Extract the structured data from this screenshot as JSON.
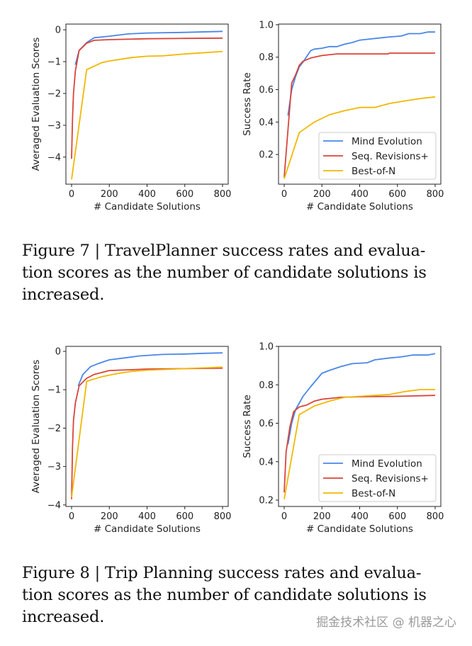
{
  "colors": {
    "mind_evolution": "#4a86e8",
    "seq_revisions": "#d9443a",
    "best_of_n": "#f2b705"
  },
  "figure7": {
    "caption_lines": [
      "Figure 7 | TravelPlanner success rates and evalua-",
      "tion scores as the number of candidate solutions is",
      "increased."
    ]
  },
  "figure8": {
    "caption_lines": [
      "Figure 8 | Trip Planning success rates and evalua-",
      "tion scores as the number of candidate solutions is",
      "increased."
    ]
  },
  "watermark": "掘金技术社区 @ 机器之心",
  "chart_data": [
    {
      "type": "line",
      "figure": "Figure 7",
      "xlabel": "# Candidate Solutions",
      "ylabel": "Averaged Evaluation Scores",
      "xlim": [
        -30,
        830
      ],
      "ylim": [
        -4.85,
        0.18
      ],
      "xticks": [
        0,
        200,
        400,
        600,
        800
      ],
      "xtick_labels": [
        "0",
        "200",
        "400",
        "600",
        "800"
      ],
      "yticks": [
        0,
        -1,
        -2,
        -3,
        -4
      ],
      "ytick_labels": [
        "0",
        "−1",
        "−2",
        "−3",
        "−4"
      ],
      "grid": false,
      "legend": null,
      "series": [
        {
          "key": "mind_evolution",
          "x": [
            20,
            40,
            80,
            120,
            200,
            300,
            400,
            600,
            800
          ],
          "y": [
            -1.1,
            -0.65,
            -0.4,
            -0.25,
            -0.2,
            -0.13,
            -0.1,
            -0.08,
            -0.05
          ]
        },
        {
          "key": "seq_revisions",
          "x": [
            0,
            5,
            10,
            20,
            40,
            80,
            120,
            200,
            400,
            600,
            800
          ],
          "y": [
            -4.05,
            -2.8,
            -2.0,
            -1.3,
            -0.65,
            -0.42,
            -0.33,
            -0.31,
            -0.28,
            -0.27,
            -0.26
          ]
        },
        {
          "key": "best_of_n",
          "x": [
            0,
            80,
            160,
            200,
            320,
            400,
            480,
            600,
            800
          ],
          "y": [
            -4.7,
            -1.25,
            -1.03,
            -0.98,
            -0.87,
            -0.83,
            -0.82,
            -0.76,
            -0.68
          ]
        }
      ]
    },
    {
      "type": "line",
      "figure": "Figure 7",
      "xlabel": "# Candidate Solutions",
      "ylabel": "Success Rate",
      "xlim": [
        -30,
        830
      ],
      "ylim": [
        0.017,
        1.004
      ],
      "xticks": [
        0,
        200,
        400,
        600,
        800
      ],
      "xtick_labels": [
        "0",
        "200",
        "400",
        "600",
        "800"
      ],
      "yticks": [
        1.0,
        0.8,
        0.6,
        0.4,
        0.2
      ],
      "ytick_labels": [
        "1.0",
        "0.8",
        "0.6",
        "0.4",
        "0.2"
      ],
      "grid": false,
      "legend": "lower-right",
      "series": [
        {
          "key": "mind_evolution",
          "name": "Mind Evolution",
          "x": [
            20,
            40,
            60,
            80,
            100,
            140,
            160,
            200,
            240,
            280,
            320,
            360,
            400,
            440,
            520,
            560,
            620,
            660,
            720,
            760,
            800
          ],
          "y": [
            0.44,
            0.6,
            0.68,
            0.74,
            0.77,
            0.84,
            0.85,
            0.855,
            0.865,
            0.865,
            0.88,
            0.89,
            0.905,
            0.91,
            0.92,
            0.925,
            0.93,
            0.945,
            0.945,
            0.955,
            0.955
          ]
        },
        {
          "key": "seq_revisions",
          "name": "Seq. Revisions+",
          "x": [
            0,
            20,
            40,
            60,
            80,
            100,
            140,
            200,
            280,
            550,
            560,
            800
          ],
          "y": [
            0.06,
            0.35,
            0.64,
            0.69,
            0.75,
            0.775,
            0.795,
            0.81,
            0.82,
            0.82,
            0.825,
            0.825
          ]
        },
        {
          "key": "best_of_n",
          "name": "Best-of-N",
          "x": [
            0,
            80,
            160,
            240,
            320,
            400,
            480,
            560,
            640,
            720,
            800
          ],
          "y": [
            0.05,
            0.335,
            0.4,
            0.445,
            0.47,
            0.49,
            0.49,
            0.515,
            0.53,
            0.545,
            0.555
          ]
        }
      ]
    },
    {
      "type": "line",
      "figure": "Figure 8",
      "xlabel": "# Candidate Solutions",
      "ylabel": "Averaged Evaluation Scores",
      "xlim": [
        -30,
        830
      ],
      "ylim": [
        -4.04,
        0.13
      ],
      "xticks": [
        0,
        200,
        400,
        600,
        800
      ],
      "xtick_labels": [
        "0",
        "200",
        "400",
        "600",
        "800"
      ],
      "yticks": [
        0,
        -1,
        -2,
        -3,
        -4
      ],
      "ytick_labels": [
        "0",
        "−1",
        "−2",
        "−3",
        "−4"
      ],
      "grid": false,
      "legend": null,
      "series": [
        {
          "key": "mind_evolution",
          "x": [
            35,
            60,
            100,
            140,
            200,
            280,
            360,
            480,
            600,
            700,
            800
          ],
          "y": [
            -0.9,
            -0.6,
            -0.4,
            -0.32,
            -0.22,
            -0.17,
            -0.12,
            -0.08,
            -0.07,
            -0.05,
            -0.04
          ]
        },
        {
          "key": "seq_revisions",
          "x": [
            0,
            5,
            10,
            20,
            40,
            80,
            120,
            160,
            200,
            300,
            400,
            600,
            800
          ],
          "y": [
            -3.85,
            -2.5,
            -1.8,
            -1.35,
            -0.9,
            -0.7,
            -0.6,
            -0.55,
            -0.5,
            -0.48,
            -0.46,
            -0.45,
            -0.44
          ]
        },
        {
          "key": "best_of_n",
          "x": [
            0,
            80,
            160,
            240,
            320,
            400,
            600,
            800
          ],
          "y": [
            -3.8,
            -0.78,
            -0.66,
            -0.58,
            -0.52,
            -0.49,
            -0.45,
            -0.41
          ]
        }
      ]
    },
    {
      "type": "line",
      "figure": "Figure 8",
      "xlabel": "# Candidate Solutions",
      "ylabel": "Success Rate",
      "xlim": [
        -30,
        830
      ],
      "ylim": [
        0.167,
        1.0
      ],
      "xticks": [
        0,
        200,
        400,
        600,
        800
      ],
      "xtick_labels": [
        "0",
        "200",
        "400",
        "600",
        "800"
      ],
      "yticks": [
        1.0,
        0.8,
        0.6,
        0.4,
        0.2
      ],
      "ytick_labels": [
        "1.0",
        "0.8",
        "0.6",
        "0.4",
        "0.2"
      ],
      "grid": false,
      "legend": "lower-right",
      "series": [
        {
          "key": "mind_evolution",
          "name": "Mind Evolution",
          "x": [
            20,
            40,
            60,
            100,
            140,
            200,
            240,
            300,
            360,
            440,
            480,
            560,
            620,
            680,
            760,
            800
          ],
          "y": [
            0.49,
            0.6,
            0.67,
            0.74,
            0.79,
            0.86,
            0.875,
            0.895,
            0.91,
            0.915,
            0.93,
            0.94,
            0.945,
            0.955,
            0.955,
            0.962
          ]
        },
        {
          "key": "seq_revisions",
          "name": "Seq. Revisions+",
          "x": [
            0,
            10,
            30,
            50,
            80,
            120,
            160,
            200,
            300,
            400,
            600,
            800
          ],
          "y": [
            0.24,
            0.45,
            0.58,
            0.66,
            0.685,
            0.695,
            0.715,
            0.725,
            0.735,
            0.738,
            0.74,
            0.745
          ]
        },
        {
          "key": "best_of_n",
          "name": "Best-of-N",
          "x": [
            0,
            80,
            160,
            240,
            320,
            400,
            480,
            560,
            640,
            720,
            800
          ],
          "y": [
            0.205,
            0.645,
            0.69,
            0.715,
            0.735,
            0.74,
            0.745,
            0.75,
            0.765,
            0.775,
            0.775
          ]
        }
      ]
    }
  ]
}
